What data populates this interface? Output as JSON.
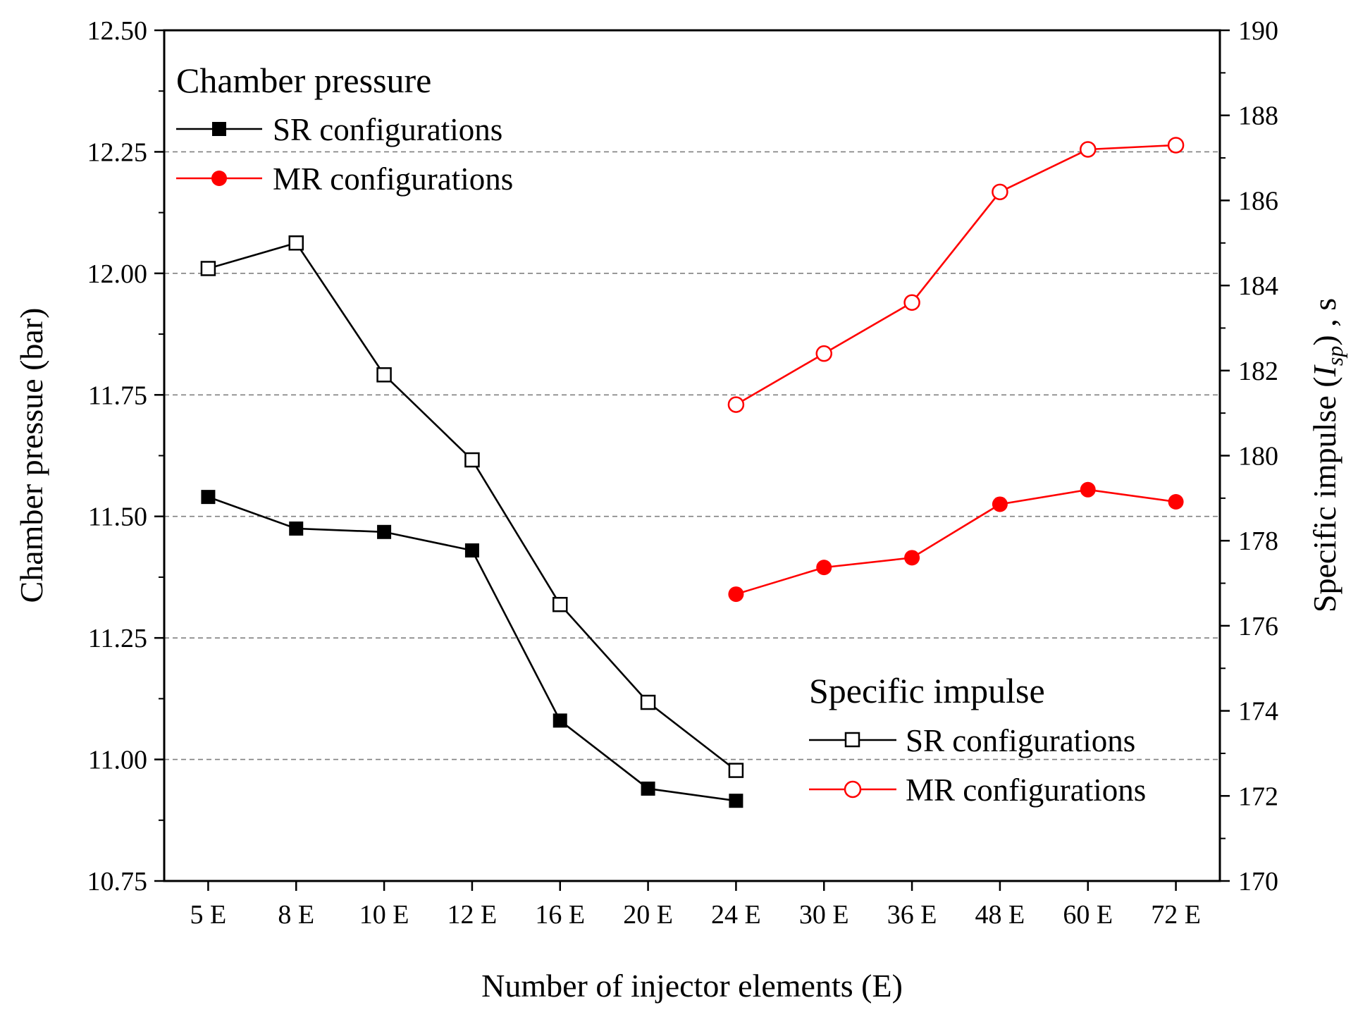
{
  "chart_data": {
    "type": "line",
    "categories": [
      "5 E",
      "8 E",
      "10 E",
      "12 E",
      "16 E",
      "20 E",
      "24 E",
      "30 E",
      "36 E",
      "48 E",
      "60 E",
      "72 E"
    ],
    "xlabel": "Number of injector elements (E)",
    "ylabel_left": "Chamber pressue (bar)",
    "ylabel_right_parts": [
      "Specific impulse (",
      "I",
      "sp",
      ") , s"
    ],
    "ylim_left": [
      10.75,
      12.5
    ],
    "ylim_right": [
      170,
      190
    ],
    "yticks_left": [
      "10.75",
      "11.00",
      "11.25",
      "11.50",
      "11.75",
      "12.00",
      "12.25",
      "12.50"
    ],
    "yticks_right": [
      "170",
      "172",
      "174",
      "176",
      "178",
      "180",
      "182",
      "184",
      "186",
      "188",
      "190"
    ],
    "grid": "dashed horizontal at left-axis major ticks",
    "legend_pressure": {
      "title": "Chamber pressure",
      "placement": "top-left",
      "items": [
        "SR configurations",
        "MR configurations"
      ]
    },
    "legend_isp": {
      "title": "Specific impulse",
      "placement": "bottom-right",
      "items": [
        "SR configurations",
        "MR configurations"
      ]
    },
    "series": [
      {
        "name": "SR configurations",
        "group": "Chamber pressure",
        "axis": "left",
        "color": "#000000",
        "marker": "filled-square",
        "values": [
          11.54,
          11.475,
          11.468,
          11.43,
          11.08,
          10.94,
          10.915,
          null,
          null,
          null,
          null,
          null
        ]
      },
      {
        "name": "MR configurations",
        "group": "Chamber pressure",
        "axis": "left",
        "color": "#ff0000",
        "marker": "filled-circle",
        "values": [
          null,
          null,
          null,
          null,
          null,
          null,
          11.34,
          11.395,
          11.415,
          11.525,
          11.555,
          11.53
        ]
      },
      {
        "name": "SR configurations",
        "group": "Specific impulse",
        "axis": "right",
        "color": "#000000",
        "marker": "open-square",
        "values": [
          184.4,
          185.0,
          181.9,
          179.9,
          176.5,
          174.2,
          172.6,
          null,
          null,
          null,
          null,
          null
        ]
      },
      {
        "name": "MR configurations",
        "group": "Specific impulse",
        "axis": "right",
        "color": "#ff0000",
        "marker": "open-circle",
        "values": [
          null,
          null,
          null,
          null,
          null,
          null,
          181.2,
          182.4,
          183.6,
          186.2,
          187.2,
          187.3
        ]
      }
    ]
  }
}
